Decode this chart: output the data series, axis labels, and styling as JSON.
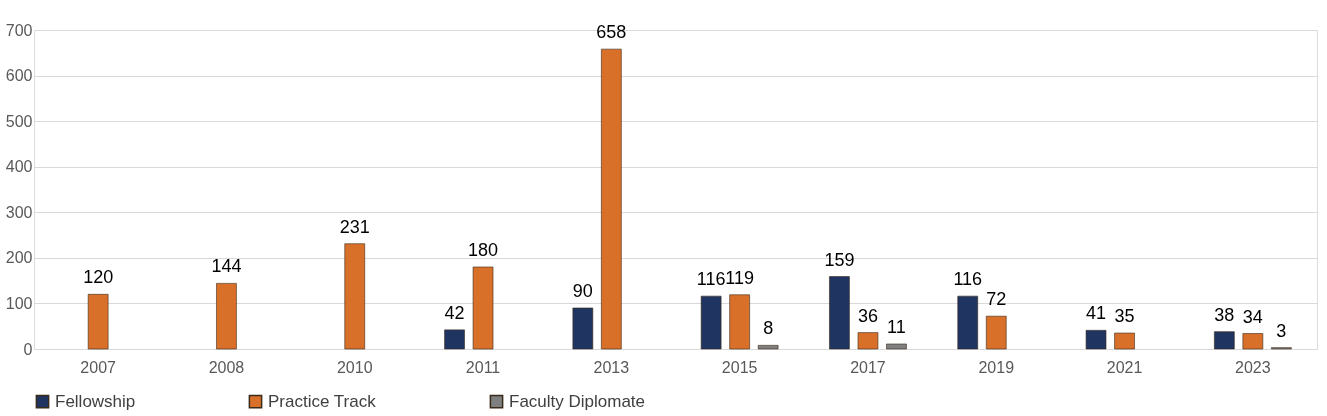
{
  "chart_data": {
    "type": "bar",
    "categories": [
      "2007",
      "2008",
      "2010",
      "2011",
      "2013",
      "2015",
      "2017",
      "2019",
      "2021",
      "2023"
    ],
    "series": [
      {
        "name": "Fellowship",
        "color": "#1f3461",
        "values": [
          null,
          null,
          null,
          42,
          90,
          116,
          159,
          116,
          41,
          38
        ]
      },
      {
        "name": "Practice Track",
        "color": "#d9702a",
        "values": [
          120,
          144,
          231,
          180,
          658,
          119,
          36,
          72,
          35,
          34
        ]
      },
      {
        "name": "Faculty Diplomate",
        "color": "#7f7f7f",
        "values": [
          null,
          null,
          null,
          null,
          null,
          8,
          11,
          null,
          null,
          3
        ]
      }
    ],
    "ylim": [
      0,
      700
    ],
    "yticks": [
      0,
      100,
      200,
      300,
      400,
      500,
      600,
      700
    ],
    "grid": "y",
    "legend": "bottom",
    "data_labels": true
  }
}
